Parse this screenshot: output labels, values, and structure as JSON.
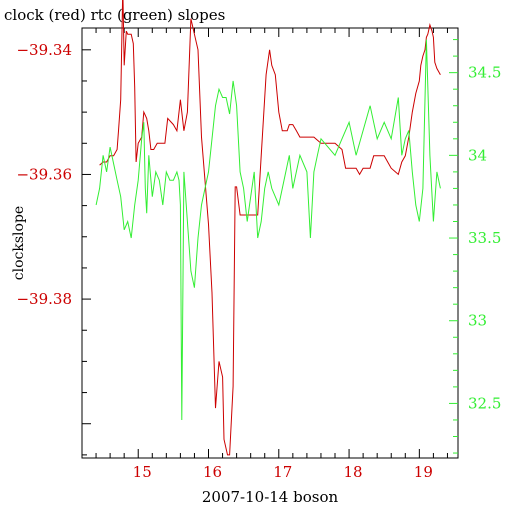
{
  "chart_data": {
    "type": "line",
    "title": "clock (red) rtc (green) slopes",
    "xlabel": "2007-10-14 boson",
    "ylabel": "clockslope",
    "xlim": [
      14.2,
      19.55
    ],
    "x_ticks": [
      15,
      16,
      17,
      18,
      19
    ],
    "y_left": {
      "lim": [
        -39.4055,
        -39.3365
      ],
      "ticks": [
        -39.34,
        -39.36,
        -39.38
      ],
      "tick_labels": [
        "−39.34",
        "−39.36",
        "−39.38"
      ],
      "color": "#cc0000"
    },
    "y_right": {
      "lim": [
        32.17,
        34.77
      ],
      "ticks": [
        34.5,
        34,
        33.5,
        33,
        32.5
      ],
      "tick_labels": [
        "34.5",
        "34",
        "33.5",
        "33",
        "32.5"
      ],
      "color": "#33ee33"
    },
    "grid": false,
    "series": [
      {
        "name": "clock",
        "axis": "left",
        "color": "#cc0000",
        "x": [
          14.45,
          14.5,
          14.55,
          14.6,
          14.65,
          14.7,
          14.72,
          14.75,
          14.78,
          14.8,
          14.83,
          14.85,
          14.87,
          14.9,
          14.93,
          14.95,
          14.97,
          15.0,
          15.05,
          15.08,
          15.12,
          15.15,
          15.18,
          15.22,
          15.27,
          15.32,
          15.38,
          15.42,
          15.5,
          15.55,
          15.6,
          15.65,
          15.7,
          15.75,
          15.8,
          15.85,
          15.9,
          15.95,
          16.0,
          16.05,
          16.1,
          16.15,
          16.2,
          16.22,
          16.27,
          16.3,
          16.35,
          16.38,
          16.4,
          16.45,
          16.5,
          16.6,
          16.7,
          16.75,
          16.82,
          16.87,
          16.9,
          16.95,
          17.0,
          17.05,
          17.12,
          17.15,
          17.2,
          17.25,
          17.3,
          17.4,
          17.5,
          17.6,
          17.7,
          17.8,
          17.9,
          17.95,
          18.1,
          18.15,
          18.2,
          18.3,
          18.35,
          18.5,
          18.55,
          18.6,
          18.7,
          18.75,
          18.8,
          18.85,
          18.9,
          18.95,
          19.0,
          19.02,
          19.05,
          19.08,
          19.1,
          19.12,
          19.15,
          19.18,
          19.2,
          19.22,
          19.25,
          19.3
        ],
        "values": [
          -39.3585,
          -39.358,
          -39.358,
          -39.357,
          -39.357,
          -39.356,
          -39.353,
          -39.348,
          -39.33,
          -39.3425,
          -39.337,
          -39.3375,
          -39.3375,
          -39.3375,
          -39.339,
          -39.346,
          -39.358,
          -39.355,
          -39.354,
          -39.35,
          -39.351,
          -39.353,
          -39.356,
          -39.356,
          -39.355,
          -39.355,
          -39.355,
          -39.351,
          -39.352,
          -39.353,
          -39.348,
          -39.353,
          -39.35,
          -39.335,
          -39.3375,
          -39.34,
          -39.354,
          -39.361,
          -39.368,
          -39.379,
          -39.3975,
          -39.39,
          -39.3925,
          -39.4025,
          -39.405,
          -39.405,
          -39.394,
          -39.362,
          -39.362,
          -39.3665,
          -39.3665,
          -39.3665,
          -39.3665,
          -39.357,
          -39.344,
          -39.34,
          -39.3425,
          -39.344,
          -39.35,
          -39.353,
          -39.353,
          -39.352,
          -39.352,
          -39.353,
          -39.354,
          -39.354,
          -39.354,
          -39.355,
          -39.355,
          -39.355,
          -39.356,
          -39.359,
          -39.359,
          -39.36,
          -39.359,
          -39.359,
          -39.357,
          -39.357,
          -39.358,
          -39.359,
          -39.36,
          -39.358,
          -39.357,
          -39.354,
          -39.35,
          -39.347,
          -39.345,
          -39.3425,
          -39.341,
          -39.34,
          -39.338,
          -39.3375,
          -39.336,
          -39.337,
          -39.338,
          -39.342,
          -39.343,
          -39.344
        ]
      },
      {
        "name": "rtc",
        "axis": "right",
        "color": "#33ee33",
        "x": [
          14.4,
          14.45,
          14.5,
          14.55,
          14.6,
          14.65,
          14.7,
          14.75,
          14.8,
          14.85,
          14.9,
          14.95,
          15.0,
          15.05,
          15.08,
          15.1,
          15.12,
          15.15,
          15.2,
          15.25,
          15.3,
          15.35,
          15.4,
          15.45,
          15.5,
          15.55,
          15.58,
          15.6,
          15.62,
          15.65,
          15.7,
          15.75,
          15.8,
          15.85,
          15.9,
          15.95,
          16.0,
          16.05,
          16.1,
          16.15,
          16.2,
          16.25,
          16.3,
          16.35,
          16.4,
          16.45,
          16.5,
          16.55,
          16.6,
          16.65,
          16.7,
          16.75,
          16.8,
          16.85,
          16.9,
          16.95,
          17.0,
          17.05,
          17.1,
          17.15,
          17.2,
          17.3,
          17.4,
          17.45,
          17.5,
          17.55,
          17.6,
          17.7,
          17.8,
          17.9,
          18.0,
          18.1,
          18.2,
          18.3,
          18.4,
          18.5,
          18.6,
          18.7,
          18.75,
          18.8,
          18.85,
          18.9,
          18.95,
          19.0,
          19.05,
          19.1,
          19.15,
          19.2,
          19.25,
          19.3
        ],
        "values": [
          33.7,
          33.8,
          34.0,
          33.9,
          34.05,
          33.95,
          33.85,
          33.75,
          33.55,
          33.6,
          33.5,
          33.7,
          33.85,
          34.1,
          34.2,
          33.8,
          33.65,
          34.0,
          33.75,
          33.9,
          33.85,
          33.7,
          33.9,
          33.85,
          33.85,
          33.9,
          33.85,
          33.7,
          32.4,
          33.9,
          33.6,
          33.3,
          33.2,
          33.5,
          33.7,
          33.8,
          33.9,
          34.1,
          34.3,
          34.4,
          34.35,
          34.35,
          34.25,
          34.45,
          34.3,
          33.9,
          33.8,
          33.6,
          33.75,
          33.9,
          33.5,
          33.6,
          33.8,
          33.9,
          33.8,
          33.75,
          33.7,
          33.8,
          33.9,
          34.0,
          33.8,
          34.0,
          33.9,
          33.5,
          33.9,
          34.0,
          34.1,
          34.05,
          34.0,
          34.1,
          34.2,
          34.0,
          34.15,
          34.3,
          34.1,
          34.2,
          34.1,
          34.35,
          34.0,
          34.1,
          34.15,
          33.9,
          33.7,
          33.6,
          33.8,
          34.7,
          34.0,
          33.6,
          33.9,
          33.8
        ]
      }
    ]
  }
}
